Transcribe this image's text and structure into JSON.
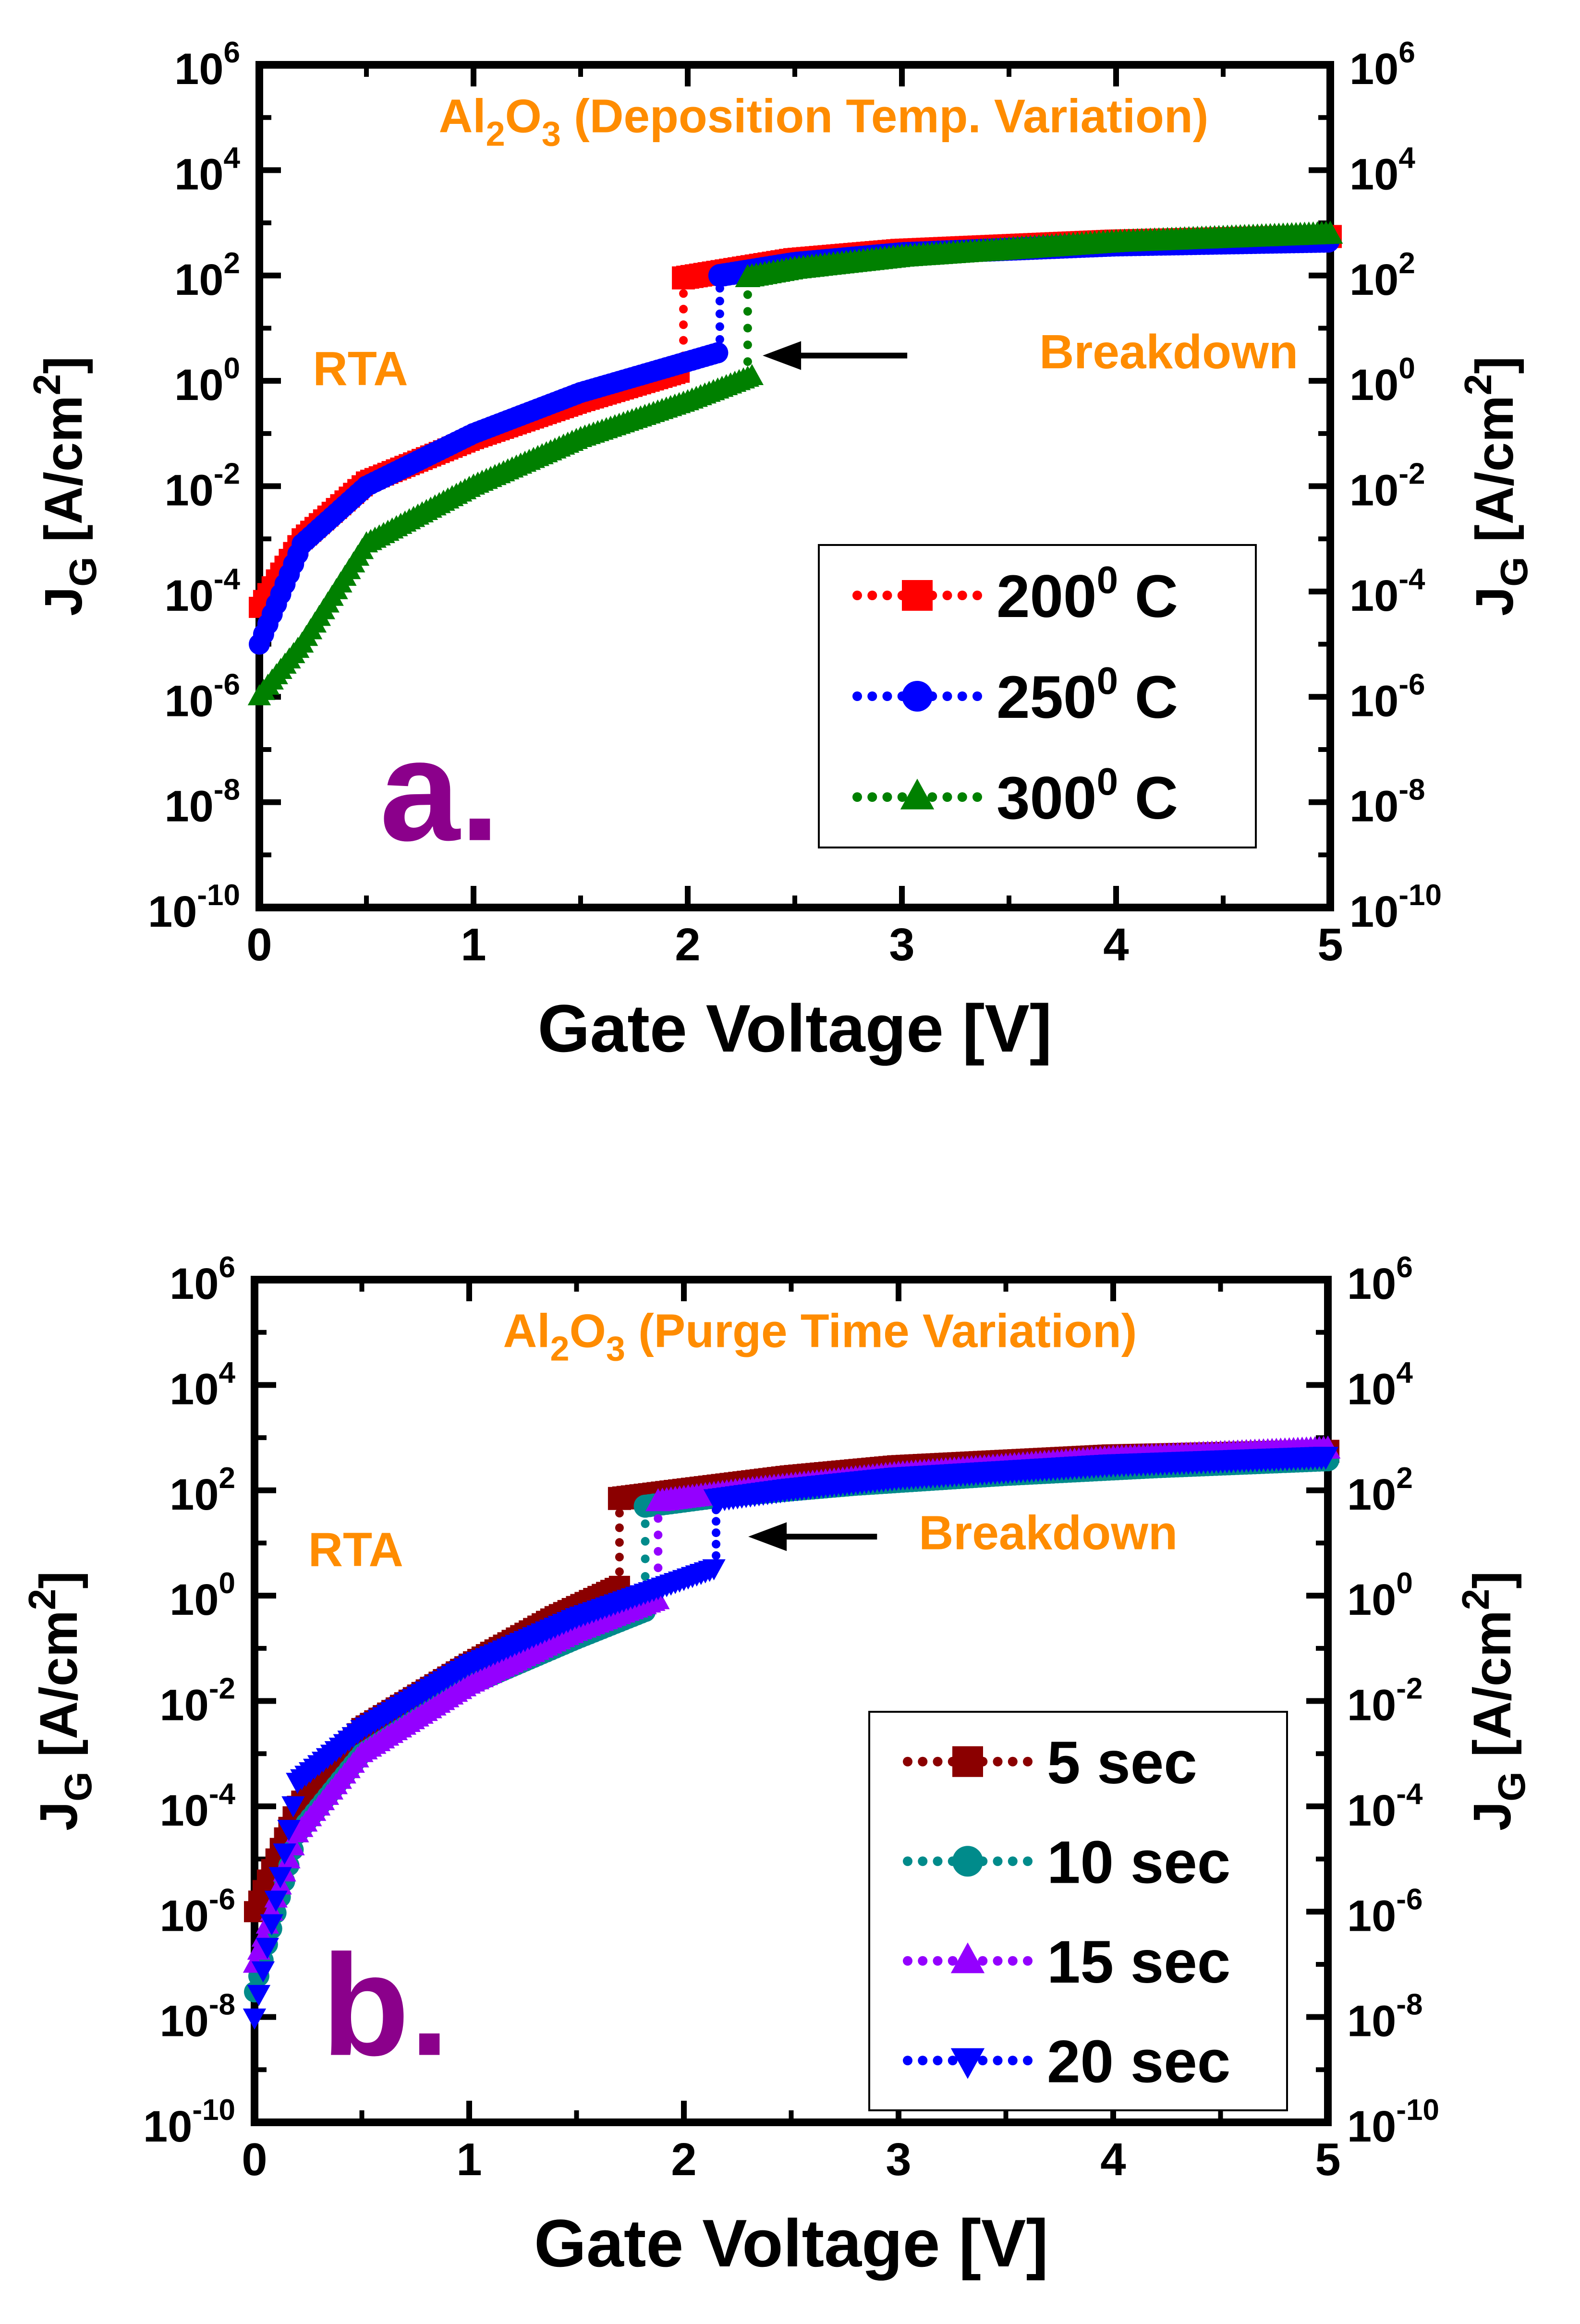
{
  "chart_data": [
    {
      "type": "scatter",
      "panel_label": "a.",
      "annotation_material": "Al",
      "annotation_sub1": "2",
      "annotation_mid": "O",
      "annotation_sub2": "3",
      "annotation_rest": " (Deposition Temp. Variation)",
      "annotation_rta": "RTA",
      "annotation_breakdown": "Breakdown",
      "xlabel": "Gate Voltage [V]",
      "ylabel_left": "J",
      "ylabel_sub": "G",
      "ylabel_unit": " [A/cm",
      "ylabel_sup": "2",
      "ylabel_close": "]",
      "xlim": [
        0,
        5
      ],
      "ylim_log10": [
        -10,
        6
      ],
      "y_scale": "log",
      "x_ticks": [
        "0",
        "1",
        "2",
        "3",
        "4",
        "5"
      ],
      "y_tick_exponents": [
        "6",
        "4",
        "2",
        "0",
        "-2",
        "-4",
        "-6",
        "-8",
        "-10"
      ],
      "y_tick_base": "10",
      "legend_position": "lower-right",
      "series": [
        {
          "name": "200",
          "name_sup": "0",
          "name_suffix": " C",
          "color": "#ff0000",
          "marker": "square",
          "pre": [
            [
              0,
              5e-05
            ],
            [
              0.2,
              0.001
            ],
            [
              0.5,
              0.012
            ],
            [
              1.0,
              0.08
            ],
            [
              1.5,
              0.4
            ],
            [
              1.97,
              1.5
            ]
          ],
          "breakdown_v": 1.98,
          "post": [
            [
              1.98,
              90
            ],
            [
              2.5,
              200
            ],
            [
              3.0,
              300
            ],
            [
              4.0,
              450
            ],
            [
              5.0,
              550
            ]
          ]
        },
        {
          "name": "250",
          "name_sup": "0",
          "name_suffix": " C",
          "color": "#0000ff",
          "marker": "circle",
          "pre": [
            [
              0,
              1e-05
            ],
            [
              0.2,
              0.0008
            ],
            [
              0.5,
              0.01
            ],
            [
              1.0,
              0.1
            ],
            [
              1.5,
              0.6
            ],
            [
              2.15,
              3.5
            ]
          ],
          "breakdown_v": 2.15,
          "post": [
            [
              2.15,
              100
            ],
            [
              2.5,
              170
            ],
            [
              3.0,
              260
            ],
            [
              4.0,
              380
            ],
            [
              5.0,
              450
            ]
          ]
        },
        {
          "name": "300",
          "name_sup": "0",
          "name_suffix": " C",
          "color": "#008000",
          "marker": "triangle-up",
          "pre": [
            [
              0,
              1e-06
            ],
            [
              0.2,
              1e-05
            ],
            [
              0.5,
              0.0008
            ],
            [
              1.0,
              0.01
            ],
            [
              1.5,
              0.08
            ],
            [
              2.0,
              0.4
            ],
            [
              2.3,
              1.2
            ]
          ],
          "breakdown_v": 2.28,
          "post": [
            [
              2.28,
              90
            ],
            [
              2.5,
              130
            ],
            [
              3.0,
              220
            ],
            [
              4.0,
              420
            ],
            [
              5.0,
              600
            ]
          ]
        }
      ]
    },
    {
      "type": "scatter",
      "panel_label": "b.",
      "annotation_material": "Al",
      "annotation_sub1": "2",
      "annotation_mid": "O",
      "annotation_sub2": "3",
      "annotation_rest": " (Purge Time Variation)",
      "annotation_rta": "RTA",
      "annotation_breakdown": "Breakdown",
      "xlabel": "Gate Voltage [V]",
      "ylabel_left": "J",
      "ylabel_sub": "G",
      "ylabel_unit": " [A/cm",
      "ylabel_sup": "2",
      "ylabel_close": "]",
      "xlim": [
        0,
        5
      ],
      "ylim_log10": [
        -10,
        6
      ],
      "y_scale": "log",
      "x_ticks": [
        "0",
        "1",
        "2",
        "3",
        "4",
        "5"
      ],
      "y_tick_exponents": [
        "6",
        "4",
        "2",
        "0",
        "-2",
        "-4",
        "-6",
        "-8",
        "-10"
      ],
      "y_tick_base": "10",
      "legend_position": "lower-right",
      "series": [
        {
          "name": "5 sec",
          "name_sup": "",
          "name_suffix": "",
          "color": "#8b0000",
          "marker": "square",
          "pre": [
            [
              0,
              1e-06
            ],
            [
              0.2,
              0.0001
            ],
            [
              0.5,
              0.003
            ],
            [
              1.0,
              0.05
            ],
            [
              1.4,
              0.4
            ],
            [
              1.7,
              1.5
            ]
          ],
          "breakdown_v": 1.7,
          "post": [
            [
              1.7,
              70
            ],
            [
              2.0,
              100
            ],
            [
              2.5,
              180
            ],
            [
              3.0,
              280
            ],
            [
              4.0,
              450
            ],
            [
              5.0,
              550
            ]
          ]
        },
        {
          "name": "10 sec",
          "name_sup": "",
          "name_suffix": "",
          "color": "#008b8b",
          "marker": "circle",
          "pre": [
            [
              0,
              3e-08
            ],
            [
              0.2,
              3e-05
            ],
            [
              0.5,
              0.001
            ],
            [
              1.0,
              0.02
            ],
            [
              1.5,
              0.15
            ],
            [
              1.82,
              0.5
            ]
          ],
          "breakdown_v": 1.82,
          "post": [
            [
              1.82,
              50
            ],
            [
              2.2,
              80
            ],
            [
              2.8,
              130
            ],
            [
              3.5,
              200
            ],
            [
              4.2,
              280
            ],
            [
              5.0,
              380
            ]
          ]
        },
        {
          "name": "15 sec",
          "name_sup": "",
          "name_suffix": "",
          "color": "#9400ff",
          "marker": "triangle-up",
          "pre": [
            [
              0,
              1e-07
            ],
            [
              0.2,
              3e-05
            ],
            [
              0.5,
              0.001
            ],
            [
              1.0,
              0.02
            ],
            [
              1.5,
              0.2
            ],
            [
              1.88,
              0.8
            ]
          ],
          "breakdown_v": 1.88,
          "post": [
            [
              1.88,
              60
            ],
            [
              2.3,
              100
            ],
            [
              3.0,
              200
            ],
            [
              4.0,
              400
            ],
            [
              5.0,
              600
            ]
          ]
        },
        {
          "name": "20 sec",
          "name_sup": "",
          "name_suffix": "",
          "color": "#0000ff",
          "marker": "triangle-down",
          "pre": [
            [
              0,
              1e-08
            ],
            [
              0.2,
              0.0003
            ],
            [
              0.5,
              0.003
            ],
            [
              1.0,
              0.05
            ],
            [
              1.5,
              0.4
            ],
            [
              2.15,
              3.5
            ]
          ],
          "breakdown_v": 2.15,
          "post": [
            [
              2.15,
              70
            ],
            [
              2.5,
              110
            ],
            [
              3.0,
              180
            ],
            [
              4.0,
              320
            ],
            [
              5.0,
              450
            ]
          ]
        }
      ]
    }
  ]
}
